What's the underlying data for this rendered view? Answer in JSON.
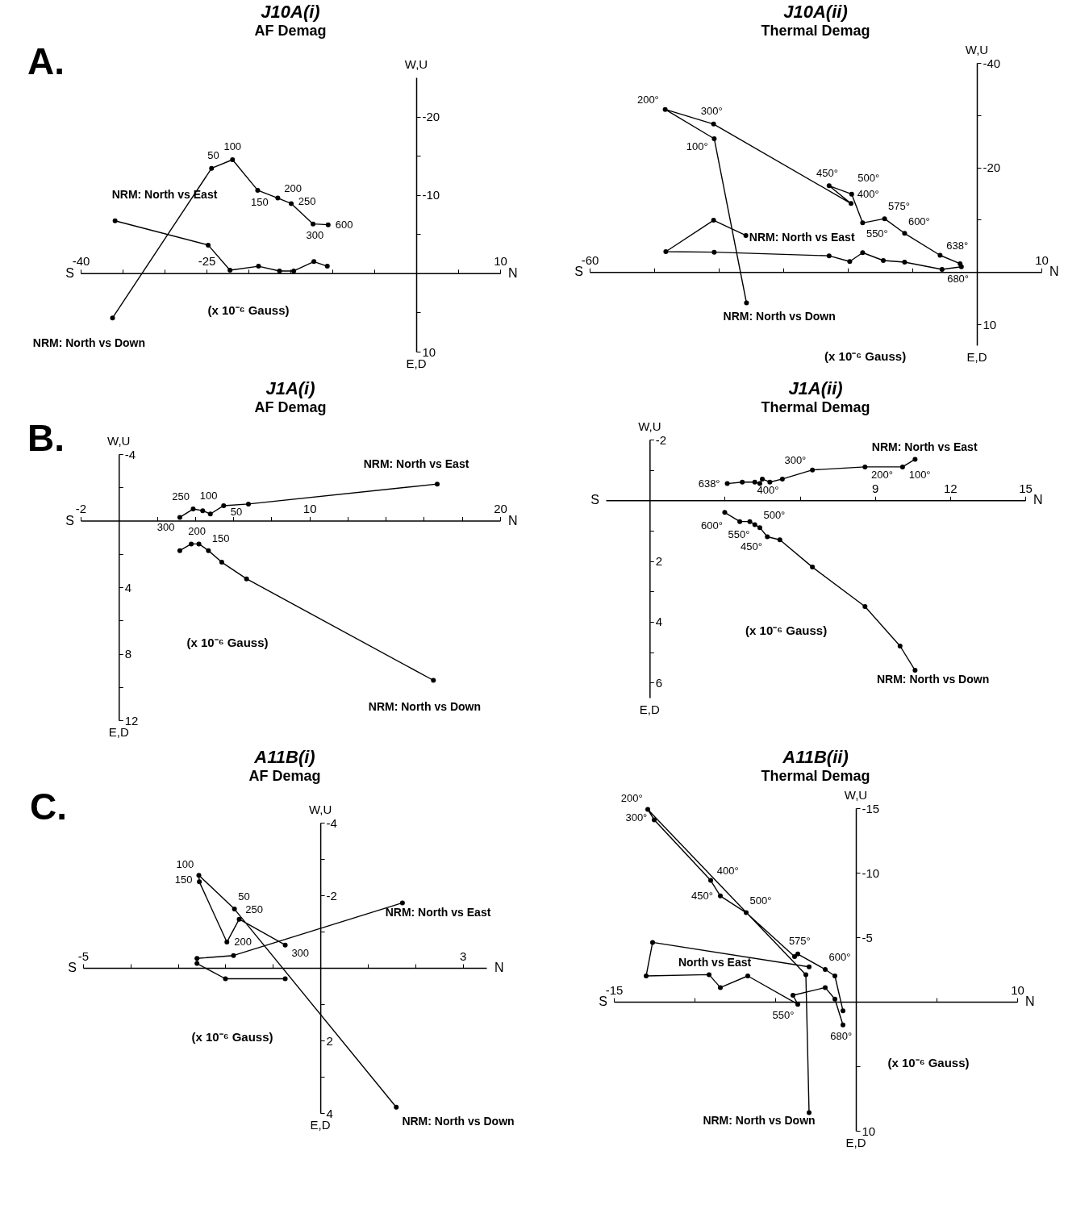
{
  "chart_data": [
    {
      "type": "line",
      "title": "J10A(i)",
      "subtitle": "AF Demag",
      "xlabel": "(x 10⁻⁶ Gauss)",
      "marker": "circle",
      "xlim": [
        -40,
        10
      ],
      "ylim": [
        10,
        -25
      ],
      "xticks": [
        -40,
        {
          "value": -35,
          "label": null
        },
        {
          "value": -30,
          "label": null
        },
        -25,
        {
          "value": -20,
          "label": null
        },
        {
          "value": -15,
          "label": null
        },
        {
          "value": -10,
          "label": null
        },
        {
          "value": -5,
          "label": null
        },
        {
          "value": 5,
          "label": null
        },
        10
      ],
      "yticks": [
        -20,
        {
          "value": -15,
          "label": null
        },
        -10,
        {
          "value": -5,
          "label": null
        },
        {
          "value": 5,
          "label": null
        },
        10
      ],
      "series": [
        {
          "name": "NRM: North vs Down",
          "color": "#000000",
          "x": [
            -36.2,
            -24.4,
            -21.9,
            -18.9,
            -16.5,
            -14.9,
            -12.3,
            -10.5
          ],
          "values": [
            5.7,
            -13.4,
            -14.5,
            -10.6,
            -9.6,
            -8.9,
            -6.3,
            -6.2
          ]
        },
        {
          "name": "NRM: North vs East",
          "color": "#000000",
          "x": [
            -35.9,
            -24.8,
            -22.2,
            -18.8,
            -16.3,
            -14.6,
            -12.2,
            -10.6
          ],
          "values": [
            -6.7,
            -3.6,
            -0.4,
            -0.9,
            -0.3,
            -0.3,
            -1.5,
            -0.9
          ]
        }
      ],
      "annotations": [
        "S",
        "N",
        "W,U",
        "E,D",
        "A.",
        {
          "text": "50",
          "x": -24.4,
          "y": -13.4
        },
        {
          "text": "100",
          "x": -21.9,
          "y": -14.5
        },
        {
          "text": "150",
          "x": -18.9,
          "y": -10.6
        },
        {
          "text": "200",
          "x": -16.5,
          "y": -9.6
        },
        {
          "text": "250",
          "x": -14.9,
          "y": -8.9
        },
        {
          "text": "300",
          "x": -12.3,
          "y": -6.3
        },
        {
          "text": "600",
          "x": -10.5,
          "y": -6.2
        }
      ]
    },
    {
      "type": "line",
      "title": "J10A(ii)",
      "subtitle": "Thermal Demag",
      "xlabel": "(x 10⁻⁶ Gauss)",
      "marker": "circle",
      "xlim": [
        -60,
        10
      ],
      "ylim": [
        14,
        -40
      ],
      "xticks": [
        -60,
        {
          "value": -50,
          "label": null
        },
        {
          "value": -40,
          "label": null
        },
        {
          "value": -30,
          "label": null
        },
        {
          "value": -20,
          "label": null
        },
        {
          "value": -10,
          "label": null
        },
        10
      ],
      "yticks": [
        -40,
        {
          "value": -30,
          "label": null
        },
        -20,
        {
          "value": -10,
          "label": null
        },
        10
      ],
      "series": [
        {
          "name": "NRM: North vs Down",
          "color": "#000000",
          "x": [
            -35.7,
            -40.7,
            -48.3,
            -40.8,
            -19.5,
            -22.9,
            -19.4,
            -17.7,
            -14.3,
            -11.2,
            -5.7,
            -2.6
          ],
          "values": [
            5.9,
            -25.5,
            -31.1,
            -28.3,
            -13.1,
            -16.5,
            -14.9,
            -9.4,
            -10.2,
            -7.4,
            -3.2,
            -1.6
          ]
        },
        {
          "name": "NRM: North vs East",
          "color": "#000000",
          "x": [
            -35.8,
            -40.8,
            -48.2,
            -40.7,
            -22.9,
            -19.7,
            -17.7,
            -14.5,
            -11.2,
            -5.4,
            -2.4
          ],
          "values": [
            -7.0,
            -9.9,
            -3.9,
            -3.8,
            -3.1,
            -2.0,
            -3.7,
            -2.2,
            -1.9,
            -0.5,
            -1.0
          ]
        }
      ],
      "annotations": [
        "S",
        "N",
        "W,U",
        "E,D",
        {
          "text": "100°",
          "x": -40.7,
          "y": -25.5
        },
        {
          "text": "200°",
          "x": -48.3,
          "y": -31.1
        },
        {
          "text": "300°",
          "x": -40.8,
          "y": -28.3
        },
        {
          "text": "400°",
          "x": -19.5,
          "y": -13.1
        },
        {
          "text": "450°",
          "x": -22.9,
          "y": -16.5
        },
        {
          "text": "500°",
          "x": -19.4,
          "y": -14.9
        },
        {
          "text": "550°",
          "x": -17.7,
          "y": -9.4
        },
        {
          "text": "575°",
          "x": -14.3,
          "y": -10.2
        },
        {
          "text": "600°",
          "x": -11.2,
          "y": -7.4
        },
        {
          "text": "638°",
          "x": -5.7,
          "y": -3.2
        },
        {
          "text": "680°",
          "x": -5.4,
          "y": -0.5
        }
      ]
    },
    {
      "type": "line",
      "title": "J1A(i)",
      "subtitle": "AF Demag",
      "xlabel": "(x 10⁻⁶ Gauss)",
      "marker": "circle",
      "xlim": [
        -2,
        20
      ],
      "ylim": [
        12,
        -4
      ],
      "xticks": [
        -2,
        {
          "value": 2,
          "label": null
        },
        {
          "value": 4,
          "label": null
        },
        {
          "value": 6,
          "label": null
        },
        {
          "value": 8,
          "label": null
        },
        10,
        {
          "value": 12,
          "label": null
        },
        {
          "value": 14,
          "label": null
        },
        {
          "value": 16,
          "label": null
        },
        {
          "value": 18,
          "label": null
        },
        20
      ],
      "yticks": [
        -4,
        {
          "value": -2,
          "label": null
        },
        {
          "value": 2,
          "label": null
        },
        4,
        {
          "value": 6,
          "label": null
        },
        8,
        {
          "value": 10,
          "label": null
        },
        12
      ],
      "series": [
        {
          "name": "NRM: North vs East",
          "color": "#000000",
          "x": [
            16.7,
            6.8,
            5.5,
            4.8,
            4.4,
            3.9,
            3.2
          ],
          "values": [
            -2.2,
            -1.0,
            -0.9,
            -0.4,
            -0.6,
            -0.7,
            -0.2
          ]
        },
        {
          "name": "NRM: North vs Down",
          "color": "#000000",
          "x": [
            16.5,
            6.7,
            5.4,
            4.7,
            4.2,
            3.8,
            3.2
          ],
          "values": [
            9.6,
            3.5,
            2.5,
            1.8,
            1.4,
            1.4,
            1.8
          ]
        }
      ],
      "annotations": [
        "S",
        "N",
        "W,U",
        "E,D",
        "B.",
        {
          "text": "50",
          "x": 6.8,
          "y": -1.0
        },
        {
          "text": "100",
          "x": 5.5,
          "y": -0.9
        },
        {
          "text": "250",
          "x": 3.9,
          "y": -0.7
        },
        {
          "text": "300",
          "x": 3.2,
          "y": -0.2
        },
        {
          "text": "150",
          "x": 4.7,
          "y": 1.8
        },
        {
          "text": "200",
          "x": 4.2,
          "y": 1.4
        }
      ]
    },
    {
      "type": "line",
      "title": "J1A(ii)",
      "subtitle": "Thermal Demag",
      "xlabel": "(x 10⁻⁶ Gauss)",
      "marker": "circle",
      "xlim": [
        -1.75,
        15
      ],
      "ylim": [
        6.5,
        -2
      ],
      "xticks": [
        {
          "value": 3,
          "label": null
        },
        {
          "value": 6,
          "label": null
        },
        9,
        12,
        15
      ],
      "yticks": [
        -2,
        {
          "value": -1,
          "label": null
        },
        {
          "value": 1,
          "label": null
        },
        2,
        {
          "value": 3,
          "label": null
        },
        4,
        {
          "value": 5,
          "label": null
        },
        6
      ],
      "series": [
        {
          "name": "NRM: North vs East",
          "color": "#000000",
          "x": [
            10.6,
            10.1,
            8.6,
            6.5,
            5.3,
            4.8,
            4.5,
            4.4,
            4.2,
            3.7,
            3.1
          ],
          "values": [
            -1.35,
            -1.1,
            -1.1,
            -1.0,
            -0.7,
            -0.6,
            -0.7,
            -0.55,
            -0.6,
            -0.6,
            -0.55
          ]
        },
        {
          "name": "NRM: North vs Down",
          "color": "#000000",
          "x": [
            10.6,
            10.0,
            8.6,
            6.5,
            5.2,
            4.7,
            4.4,
            4.2,
            4.0,
            3.6,
            3.0
          ],
          "values": [
            5.6,
            4.8,
            3.5,
            2.2,
            1.3,
            1.2,
            0.9,
            0.8,
            0.7,
            0.7,
            0.4
          ]
        }
      ],
      "annotations": [
        "S",
        "N",
        "W,U",
        "E,D",
        {
          "text": "100°",
          "x": 10.1,
          "y": -1.1
        },
        {
          "text": "200°",
          "x": 8.6,
          "y": -1.1
        },
        {
          "text": "300°",
          "x": 6.5,
          "y": -1.0
        },
        {
          "text": "400°",
          "x": 5.3,
          "y": -0.7
        },
        {
          "text": "638°",
          "x": 3.1,
          "y": -0.55
        },
        {
          "text": "450°",
          "x": 4.7,
          "y": 1.2
        },
        {
          "text": "500°",
          "x": 4.4,
          "y": 0.9
        },
        {
          "text": "550°",
          "x": 4.2,
          "y": 0.8
        },
        {
          "text": "600°",
          "x": 3.6,
          "y": 0.7
        }
      ]
    },
    {
      "type": "line",
      "title": "A11B(i)",
      "subtitle": "AF Demag",
      "xlabel": "(x 10⁻⁶ Gauss)",
      "marker": "circle",
      "xlim": [
        -5,
        3.5
      ],
      "ylim": [
        4,
        -4
      ],
      "xticks": [
        -5,
        {
          "value": -4,
          "label": null
        },
        {
          "value": -3,
          "label": null
        },
        {
          "value": -2,
          "label": null
        },
        {
          "value": -1,
          "label": null
        },
        {
          "value": 1,
          "label": null
        },
        {
          "value": 2,
          "label": null
        },
        3
      ],
      "yticks": [
        -4,
        {
          "value": -3,
          "label": null
        },
        -2,
        {
          "value": -1,
          "label": null
        },
        {
          "value": 1,
          "label": null
        },
        2,
        {
          "value": 3,
          "label": null
        },
        4
      ],
      "series": [
        {
          "name": "NRM: North vs Down",
          "color": "#000000",
          "x": [
            1.6,
            -1.81,
            -2.56,
            -2.55,
            -1.97,
            -1.71,
            -0.74
          ],
          "values": [
            3.84,
            -1.62,
            -2.55,
            -2.37,
            -0.71,
            -1.34,
            -0.63
          ]
        },
        {
          "name": "NRM: North vs East",
          "color": "#000000",
          "x": [
            1.73,
            -1.83,
            -2.6,
            -2.6,
            -2.0,
            -0.74
          ],
          "values": [
            -1.79,
            -0.34,
            -0.26,
            -0.12,
            0.3,
            0.3
          ]
        }
      ],
      "annotations": [
        "S",
        "N",
        "W,U",
        "E,D",
        "C.",
        {
          "text": "50",
          "x": -1.81,
          "y": -1.62
        },
        {
          "text": "100",
          "x": -2.56,
          "y": -2.55
        },
        {
          "text": "150",
          "x": -2.55,
          "y": -2.37
        },
        {
          "text": "200",
          "x": -1.97,
          "y": -0.71
        },
        {
          "text": "250",
          "x": -1.71,
          "y": -1.34
        },
        {
          "text": "300",
          "x": -0.74,
          "y": -0.63
        }
      ]
    },
    {
      "type": "line",
      "title": "A11B(ii)",
      "subtitle": "Thermal Demag",
      "xlabel": "(x 10⁻⁶ Gauss)",
      "marker": "circle",
      "xlim": [
        -15,
        10
      ],
      "ylim": [
        10,
        -15
      ],
      "xticks": [
        -15,
        {
          "value": -10,
          "label": null
        },
        {
          "value": -5,
          "label": null
        },
        {
          "value": 5,
          "label": null
        },
        10
      ],
      "yticks": [
        -15,
        -10,
        -5,
        {
          "value": 5,
          "label": null
        },
        10
      ],
      "series": [
        {
          "name": "NRM: North vs Down",
          "color": "#000000",
          "x": [
            -2.9,
            -3.1,
            -12.9,
            -12.5,
            -9.0,
            -8.4,
            -6.8,
            -3.8,
            -3.6,
            -1.9,
            -1.3,
            -0.8
          ],
          "values": [
            8.6,
            -2.1,
            -14.9,
            -14.1,
            -9.4,
            -8.2,
            -6.9,
            -3.5,
            -3.7,
            -2.5,
            -2.0,
            0.7
          ]
        },
        {
          "name": "North vs East",
          "color": "#000000",
          "x": [
            -2.9,
            -12.6,
            -13.0,
            -9.1,
            -8.4,
            -6.7,
            -3.6,
            -3.9,
            -1.9,
            -1.3,
            -0.8
          ],
          "values": [
            -2.7,
            -4.6,
            -2.0,
            -2.1,
            -1.1,
            -2.0,
            0.2,
            -0.5,
            -1.1,
            -0.2,
            1.8
          ]
        }
      ],
      "annotations": [
        "S",
        "N",
        "W,U",
        "E,D",
        {
          "text": "200°",
          "x": -12.9,
          "y": -14.9
        },
        {
          "text": "300°",
          "x": -12.5,
          "y": -14.1
        },
        {
          "text": "400°",
          "x": -9.0,
          "y": -9.4
        },
        {
          "text": "450°",
          "x": -8.4,
          "y": -8.2
        },
        {
          "text": "500°",
          "x": -6.8,
          "y": -6.9
        },
        {
          "text": "575°",
          "x": -3.6,
          "y": -3.7
        },
        {
          "text": "600°",
          "x": -1.9,
          "y": -2.5
        },
        {
          "text": "550°",
          "x": -3.6,
          "y": 0.2
        },
        {
          "text": "680°",
          "x": -0.8,
          "y": 1.8
        }
      ]
    }
  ]
}
